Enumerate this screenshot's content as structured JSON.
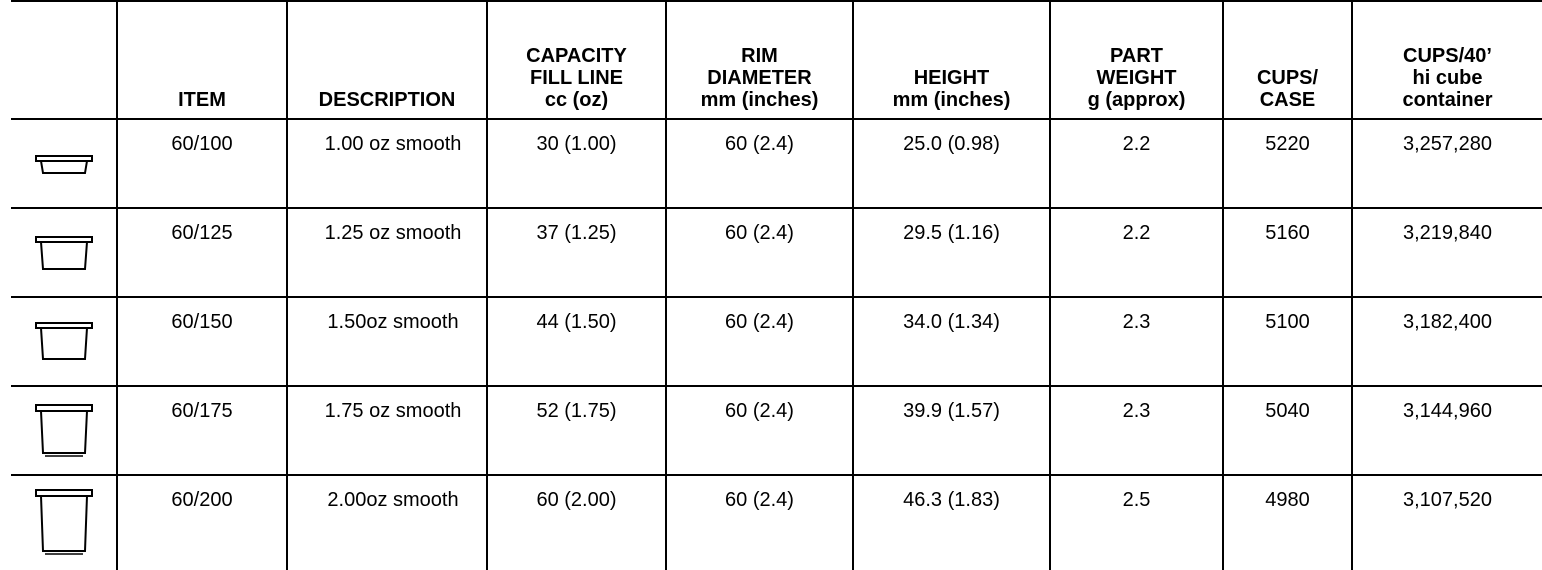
{
  "table": {
    "headers": [
      "",
      "ITEM",
      "DESCRIPTION",
      "CAPACITY\nFILL LINE\ncc (oz)",
      "RIM\nDIAMETER\nmm (inches)",
      "HEIGHT\nmm (inches)",
      "PART\nWEIGHT\ng (approx)",
      "CUPS/\nCASE",
      "CUPS/40’\nhi cube\ncontainer"
    ],
    "rows": [
      {
        "icon": "cup-1oz-icon",
        "item": "60/100",
        "description": "1.00 oz smooth",
        "capacity": "30 (1.00)",
        "rim": "60 (2.4)",
        "height": "25.0 (0.98)",
        "weight": "2.2",
        "case": "5220",
        "container": "3,257,280"
      },
      {
        "icon": "cup-1-25oz-icon",
        "item": "60/125",
        "description": "1.25 oz smooth",
        "capacity": "37 (1.25)",
        "rim": "60 (2.4)",
        "height": "29.5 (1.16)",
        "weight": "2.2",
        "case": "5160",
        "container": "3,219,840"
      },
      {
        "icon": "cup-1-5oz-icon",
        "item": "60/150",
        "description": "1.50oz smooth",
        "capacity": "44 (1.50)",
        "rim": "60 (2.4)",
        "height": "34.0 (1.34)",
        "weight": "2.3",
        "case": "5100",
        "container": "3,182,400"
      },
      {
        "icon": "cup-1-75oz-icon",
        "item": "60/175",
        "description": "1.75 oz smooth",
        "capacity": "52 (1.75)",
        "rim": "60 (2.4)",
        "height": "39.9 (1.57)",
        "weight": "2.3",
        "case": "5040",
        "container": "3,144,960"
      },
      {
        "icon": "cup-2oz-icon",
        "item": "60/200",
        "description": "2.00oz smooth",
        "capacity": "60 (2.00)",
        "rim": "60 (2.4)",
        "height": "46.3 (1.83)",
        "weight": "2.5",
        "case": "4980",
        "container": "3,107,520"
      }
    ]
  }
}
